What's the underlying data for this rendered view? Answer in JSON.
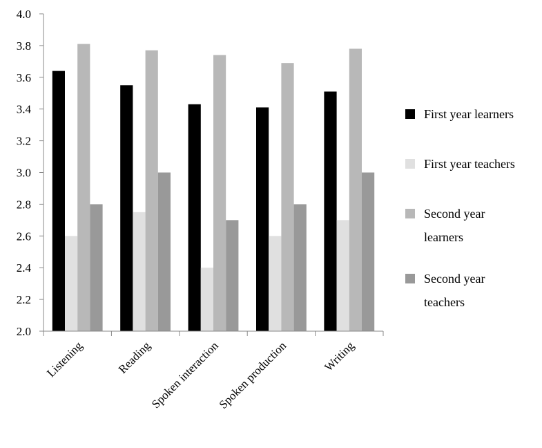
{
  "chart_data": {
    "type": "bar",
    "title": "",
    "xlabel": "",
    "ylabel": "",
    "ylim": [
      2.0,
      4.0
    ],
    "yticks": [
      "2.0",
      "2.2",
      "2.4",
      "2.6",
      "2.8",
      "3.0",
      "3.2",
      "3.4",
      "3.6",
      "3.8",
      "4.0"
    ],
    "categories": [
      "Listening",
      "Reading",
      "Spoken interaction",
      "Spoken production",
      "Writing"
    ],
    "series": [
      {
        "name": "First year learners",
        "color": "#000000",
        "values": [
          3.64,
          3.55,
          3.43,
          3.41,
          3.51
        ]
      },
      {
        "name": "First year teachers",
        "color": "#e0e0e0",
        "values": [
          2.6,
          2.75,
          2.4,
          2.6,
          2.7
        ]
      },
      {
        "name": "Second year learners",
        "color": "#b8b8b8",
        "values": [
          3.81,
          3.77,
          3.74,
          3.69,
          3.78
        ]
      },
      {
        "name": "Second year teachers",
        "color": "#999999",
        "values": [
          2.8,
          3.0,
          2.7,
          2.8,
          3.0
        ]
      }
    ],
    "grid": false,
    "legend_position": "right"
  },
  "legend": {
    "items": [
      {
        "line1": "First year learners",
        "line2": ""
      },
      {
        "line1": "First year teachers",
        "line2": ""
      },
      {
        "line1": "Second year",
        "line2": "learners"
      },
      {
        "line1": "Second year",
        "line2": "teachers"
      }
    ]
  }
}
